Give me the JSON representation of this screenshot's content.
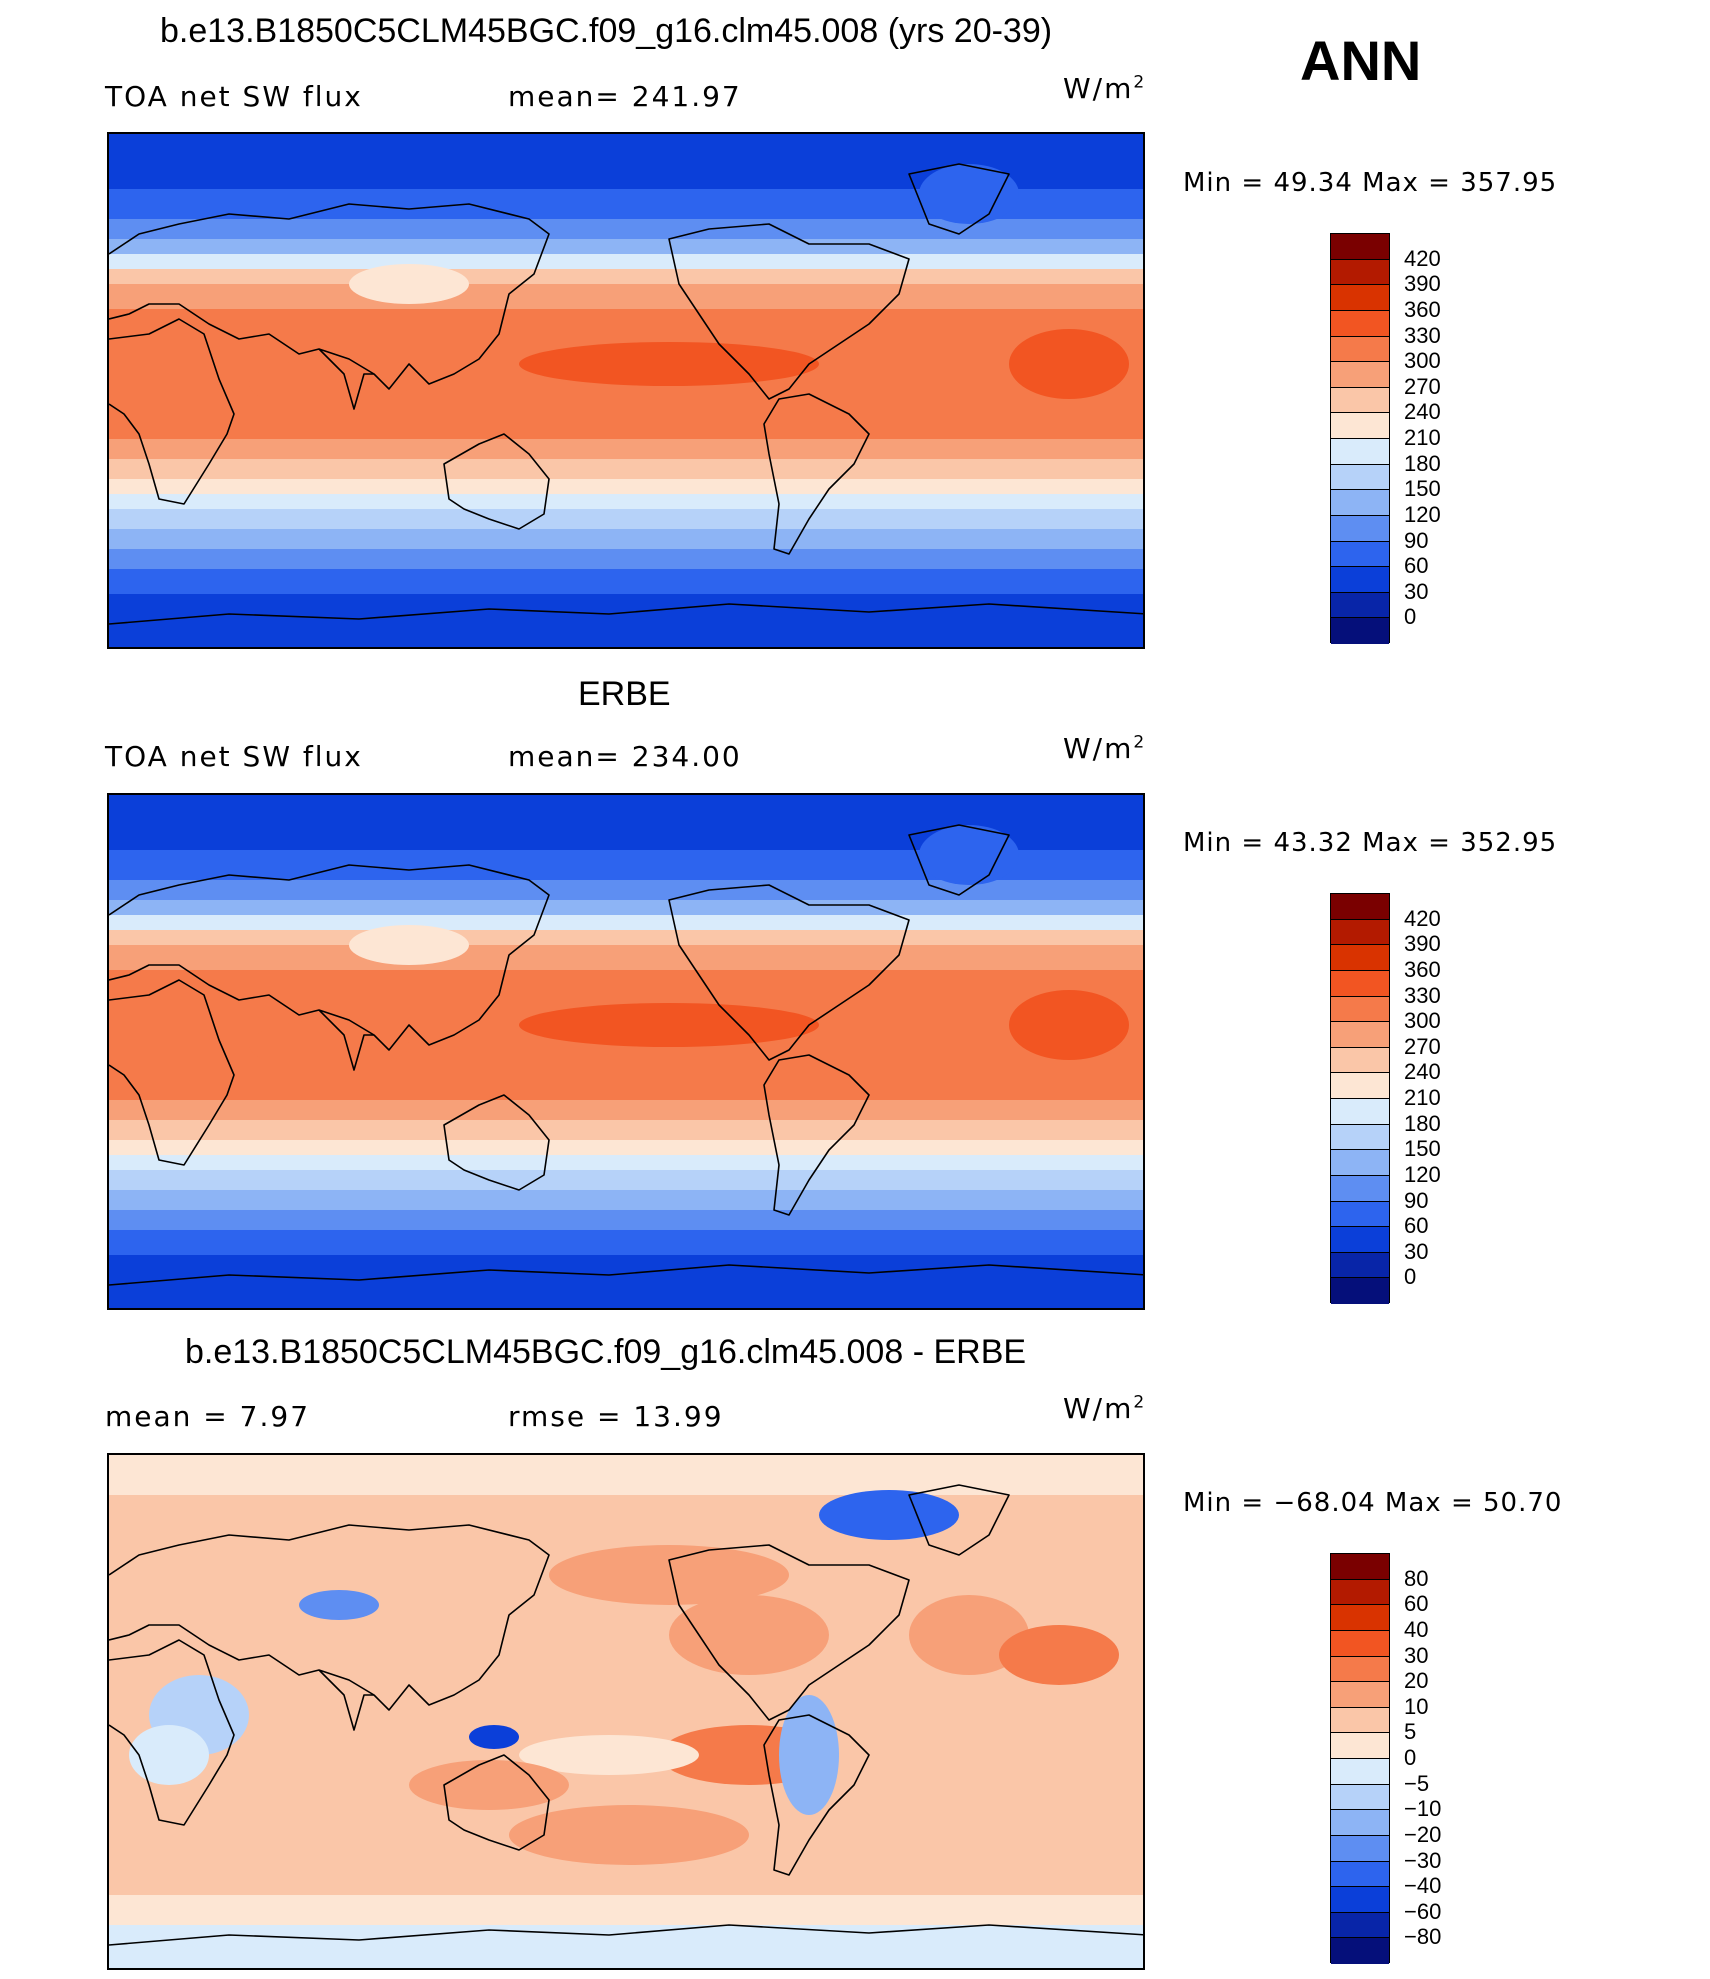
{
  "season": "ANN",
  "panels": [
    {
      "title": "b.e13.B1850C5CLM45BGC.f09_g16.clm45.008 (yrs 20-39)",
      "left_label": "TOA net SW flux",
      "mid_label": "mean= 241.97",
      "units": "W/m",
      "units_sup": "2",
      "minmax": "Min =   49.34 Max = 357.95",
      "colorbar_labels": [
        "420",
        "390",
        "360",
        "330",
        "300",
        "270",
        "240",
        "210",
        "180",
        "150",
        "120",
        "90",
        "60",
        "30",
        "0"
      ]
    },
    {
      "title": "ERBE",
      "left_label": "TOA net SW flux",
      "mid_label": "mean= 234.00",
      "units": "W/m",
      "units_sup": "2",
      "minmax": "Min =   43.32 Max = 352.95",
      "colorbar_labels": [
        "420",
        "390",
        "360",
        "330",
        "300",
        "270",
        "240",
        "210",
        "180",
        "150",
        "120",
        "90",
        "60",
        "30",
        "0"
      ]
    },
    {
      "title": "b.e13.B1850C5CLM45BGC.f09_g16.clm45.008 - ERBE",
      "left_label": "mean =     7.97",
      "mid_label": "rmse =    13.99",
      "units": "W/m",
      "units_sup": "2",
      "minmax": "Min = −68.04 Max =   50.70",
      "colorbar_labels": [
        "80",
        "60",
        "40",
        "30",
        "20",
        "10",
        "5",
        "0",
        "−5",
        "−10",
        "−20",
        "−30",
        "−40",
        "−60",
        "−80"
      ]
    }
  ],
  "colors": {
    "abs_scale": [
      "#7a0000",
      "#b31a00",
      "#d93300",
      "#f25522",
      "#f57a4a",
      "#f7a078",
      "#fac6a8",
      "#fde6d4",
      "#d9ebfb",
      "#b6d2f9",
      "#8db4f5",
      "#5e8ef2",
      "#2d64ee",
      "#0b3fd9",
      "#0825a8",
      "#050f7a"
    ],
    "diff_scale": [
      "#7a0000",
      "#b31a00",
      "#d93300",
      "#f25522",
      "#f57a4a",
      "#f7a078",
      "#fac6a8",
      "#fde6d4",
      "#d9ebfb",
      "#b6d2f9",
      "#8db4f5",
      "#5e8ef2",
      "#2d64ee",
      "#0b3fd9",
      "#0825a8",
      "#050f7a"
    ]
  }
}
